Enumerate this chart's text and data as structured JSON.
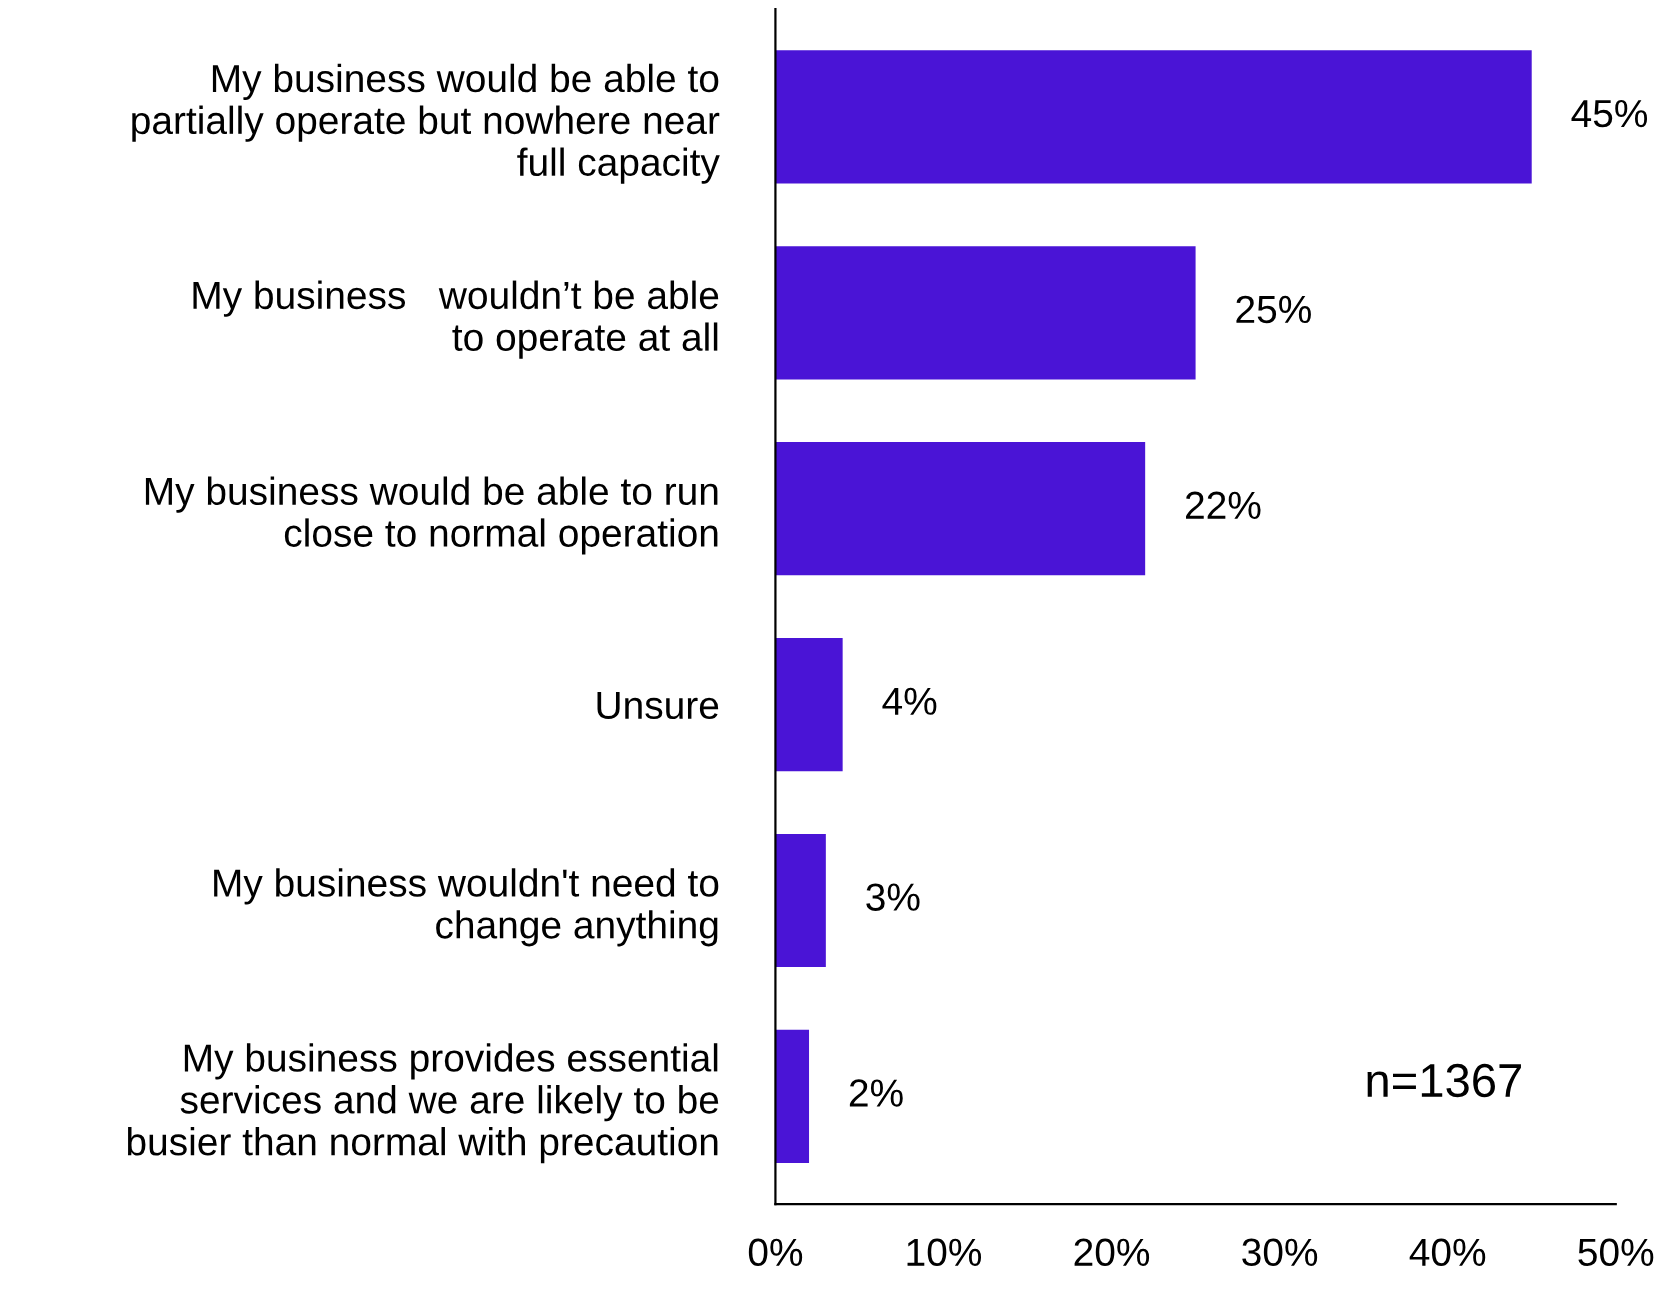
{
  "chart_data": {
    "type": "bar",
    "orientation": "horizontal",
    "categories": [
      "My business would be able to\npartially operate but nowhere near\nfull capacity",
      "My business   wouldn’t be able\nto operate at all",
      "My business would be able to run\nclose to normal operation",
      "Unsure",
      "My business wouldn't need to\nchange anything",
      "My business provides essential\nservices and we are likely to be\nbusier than normal with precaution"
    ],
    "values": [
      45,
      25,
      22,
      4,
      3,
      2
    ],
    "value_labels": [
      "45%",
      "25%",
      "22%",
      "4%",
      "3%",
      "2%"
    ],
    "color": "#4a14d6",
    "xlim": [
      0,
      50
    ],
    "xticks": [
      {
        "value": 0,
        "label": "0%"
      },
      {
        "value": 10,
        "label": "10%"
      },
      {
        "value": 20,
        "label": "20%"
      },
      {
        "value": 30,
        "label": "30%"
      },
      {
        "value": 40,
        "label": "40%"
      },
      {
        "value": 50,
        "label": "50%"
      }
    ],
    "grid": false,
    "legend": false,
    "annotations": [
      "n=1367"
    ]
  }
}
